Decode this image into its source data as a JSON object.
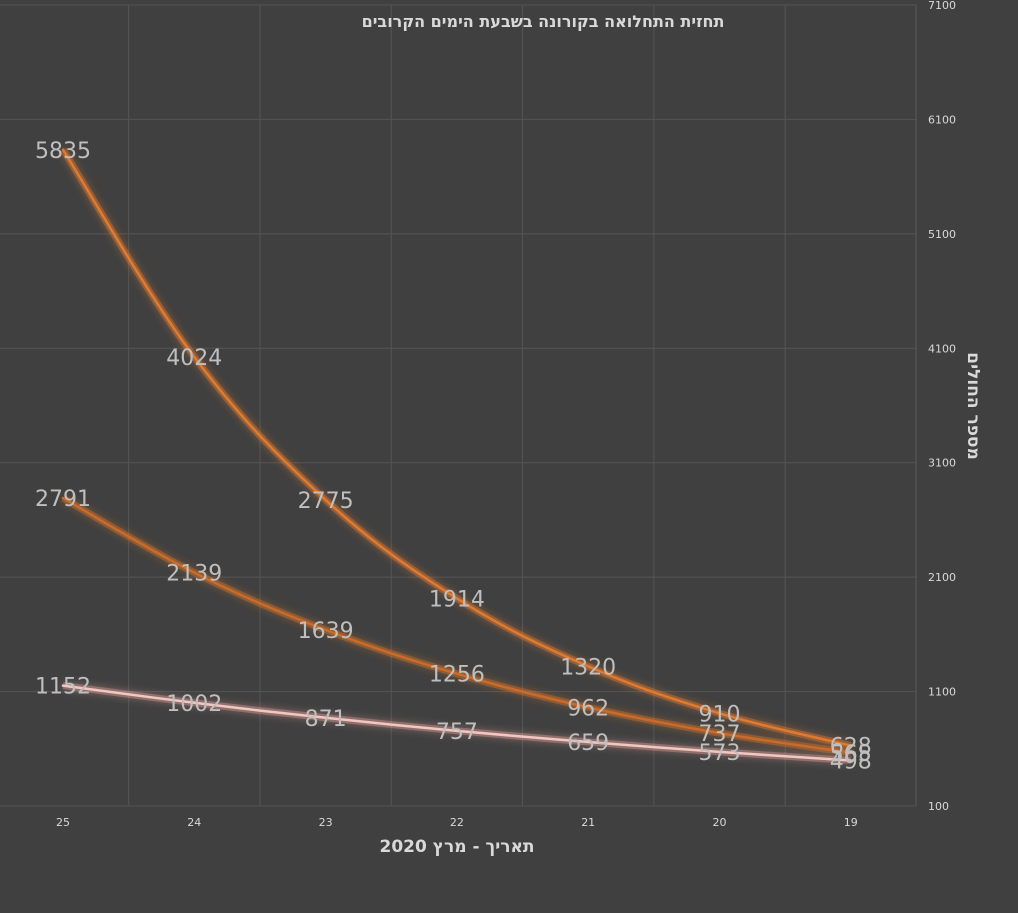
{
  "chart_data": {
    "type": "line",
    "title": "תחזית התחלואה בקורונה בשבעת הימים הקרובים",
    "xlabel": "תאריך - מרץ 2020",
    "ylabel": "מספר החולים",
    "categories": [
      "25",
      "24",
      "23",
      "22",
      "21",
      "20",
      "19"
    ],
    "ylim": [
      100,
      7100
    ],
    "yticks": [
      100,
      1100,
      2100,
      3100,
      4100,
      5100,
      6100,
      7100
    ],
    "x_reversed": true,
    "y_axis_position": "right",
    "grid": true,
    "legend": "none",
    "series": [
      {
        "values": [
          5835,
          4024,
          2775,
          1914,
          1320,
          910,
          628
        ],
        "color": "#e07a2e",
        "glow": "#f08030"
      },
      {
        "values": [
          2791,
          2139,
          1639,
          1256,
          962,
          737,
          565
        ],
        "color": "#cc6a28",
        "glow": "#e07a2e"
      },
      {
        "values": [
          1152,
          1002,
          871,
          757,
          659,
          573,
          498
        ],
        "color": "#f2c7c2",
        "glow": "#e9a59d"
      }
    ],
    "data_labels": true
  }
}
